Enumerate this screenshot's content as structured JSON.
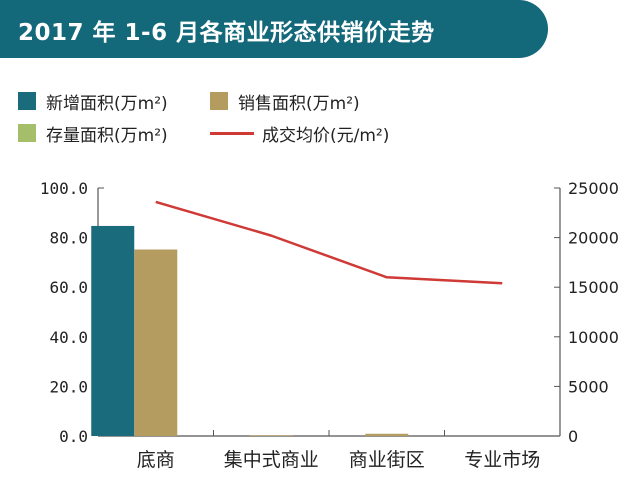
{
  "title": "2017 年 1-6 月各商业形态供销价走势",
  "colors": {
    "banner": "#13687a",
    "new_supply": "#1a6b7c",
    "sales": "#b49b60",
    "stock": "#a5be69",
    "price": "#cf3a36",
    "axis": "#555555"
  },
  "legend": [
    {
      "label": "新增面积(万m²)",
      "type": "swatch",
      "color_key": "new_supply"
    },
    {
      "label": "销售面积(万m²)",
      "type": "swatch",
      "color_key": "sales"
    },
    {
      "label": "存量面积(万m²)",
      "type": "swatch",
      "color_key": "stock"
    },
    {
      "label": "成交均价(元/m²)",
      "type": "line",
      "color_key": "price"
    }
  ],
  "chart_data": {
    "type": "bar",
    "categories": [
      "底商",
      "集中式商业",
      "商业街区",
      "专业市场"
    ],
    "series": [
      {
        "name": "新增面积(万m²)",
        "chart": "bar",
        "axis": "left",
        "values": [
          84.7,
          0.0,
          0.0,
          0.0
        ]
      },
      {
        "name": "销售面积(万m²)",
        "chart": "bar",
        "axis": "left",
        "values": [
          75.2,
          0.3,
          0.9,
          0.0
        ]
      },
      {
        "name": "存量面积(万m²)",
        "chart": "bar",
        "axis": "left",
        "values": [
          0.0,
          0.0,
          0.0,
          0.0
        ]
      },
      {
        "name": "成交均价(元/m²)",
        "chart": "line",
        "axis": "right",
        "values": [
          23600,
          20200,
          16000,
          15400
        ]
      }
    ],
    "y_left": {
      "ylim": [
        0,
        100
      ],
      "ticks": [
        "0.0",
        "20.0",
        "40.0",
        "60.0",
        "80.0",
        "100.0"
      ]
    },
    "y_right": {
      "ylim": [
        0,
        25000
      ],
      "ticks": [
        "0",
        "5000",
        "10000",
        "15000",
        "20000",
        "25000"
      ]
    },
    "grid": false,
    "legend_position": "top"
  }
}
